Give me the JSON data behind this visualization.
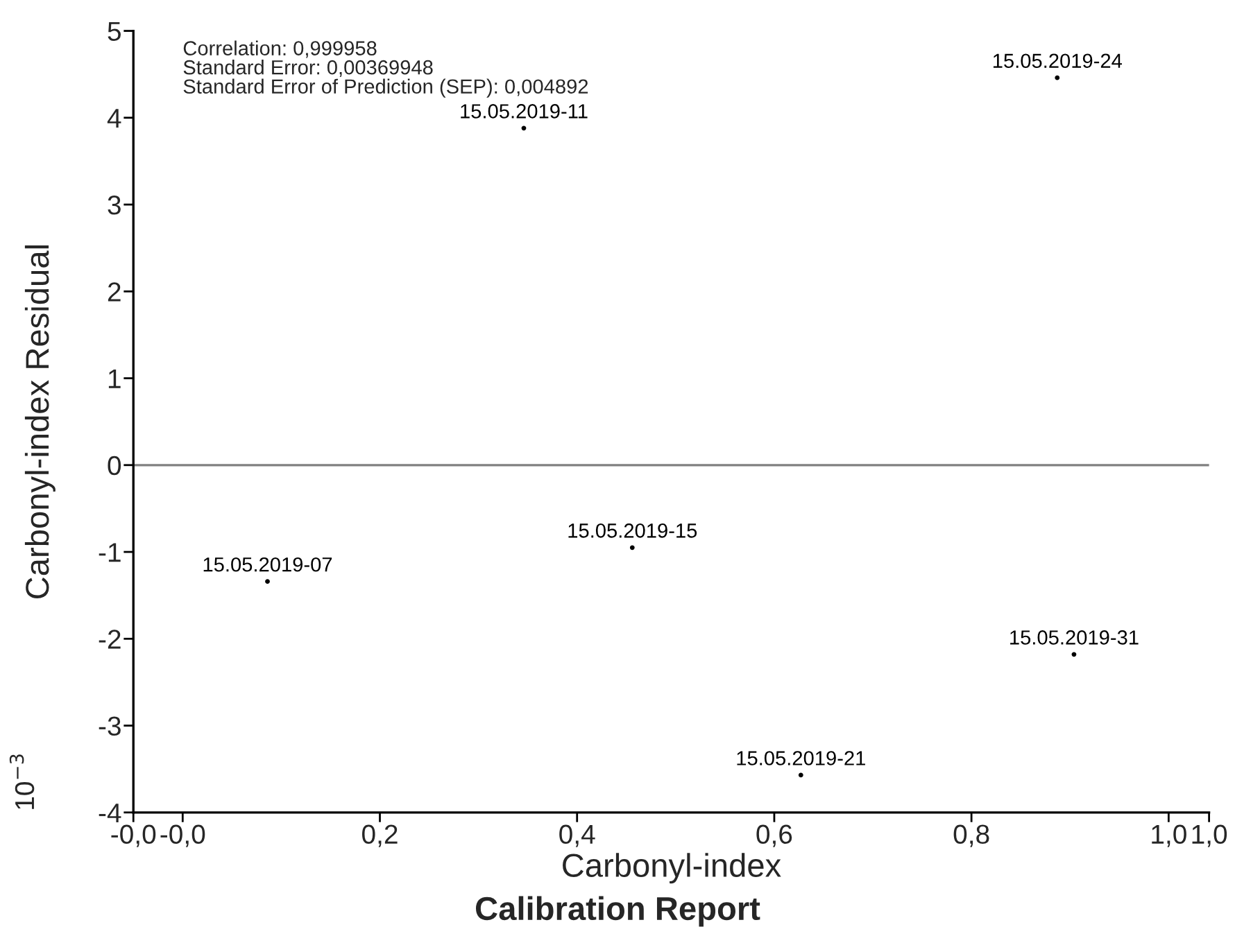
{
  "chart_data": {
    "type": "scatter",
    "title": "Calibration Report",
    "xlabel": "Carbonyl-index",
    "ylabel": "Carbonyl-index Residual",
    "annotations": [
      "Correlation: 0,999958",
      "Standard Error: 0,00369948",
      "Standard Error of Prediction (SEP): 0,004892",
      "10$^{−3}$"
    ],
    "series": [
      {
        "color": "#000000",
        "x": [
          0.086,
          0.346,
          0.456,
          0.627,
          0.887,
          0.904
        ],
        "values": [
          -1.34,
          3.88,
          -0.95,
          -3.57,
          4.46,
          -2.18
        ],
        "value_labels": [
          "15.05.2019-07",
          "15.05.2019-11",
          "15.05.2019-15",
          "15.05.2019-21",
          "15.05.2019-24",
          "15.05.2019-31"
        ]
      }
    ],
    "marker": "circle",
    "grid": false,
    "legend": false,
    "xlim": [
      -0.05,
      1.041
    ],
    "xticks": [
      {
        "value": -0.05,
        "label": "-0,0"
      },
      {
        "value": 0,
        "label": "-0,0"
      },
      {
        "value": 0.2,
        "label": "0,2"
      },
      {
        "value": 0.4,
        "label": "0,4"
      },
      {
        "value": 0.6,
        "label": "0,6"
      },
      {
        "value": 0.8,
        "label": "0,8"
      },
      {
        "value": 1.0,
        "label": "1,0"
      },
      {
        "value": 1.041,
        "label": "1,0"
      }
    ],
    "ylim": [
      -4,
      5
    ],
    "yticks": [
      -4,
      -3,
      -2,
      -1,
      0,
      1,
      2,
      3,
      4,
      5
    ],
    "ref_lines": [
      {
        "axis": "y",
        "value": 0,
        "color": "#808080"
      }
    ]
  }
}
